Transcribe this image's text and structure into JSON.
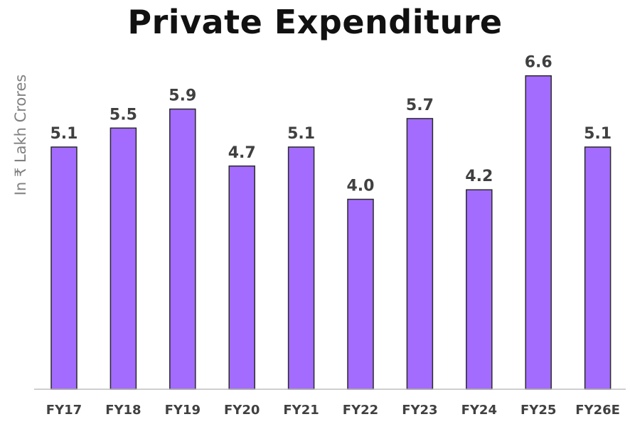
{
  "chart_data": {
    "type": "bar",
    "title": "Private Expenditure",
    "ylabel": "In ₹ Lakh Crores",
    "xlabel": "",
    "categories": [
      "FY17",
      "FY18",
      "FY19",
      "FY20",
      "FY21",
      "FY22",
      "FY23",
      "FY24",
      "FY25",
      "FY26E"
    ],
    "values": [
      5.1,
      5.5,
      5.9,
      4.7,
      5.1,
      4.0,
      5.7,
      4.2,
      6.6,
      5.1
    ],
    "value_labels": [
      "5.1",
      "5.5",
      "5.9",
      "4.7",
      "5.1",
      "4.0",
      "5.7",
      "4.2",
      "6.6",
      "5.1"
    ],
    "ylim": [
      0,
      7
    ],
    "grid": false,
    "legend": "none",
    "colors": {
      "bar": "#a36cff",
      "bar_border": "#2a2a2a",
      "value_text": "#404040",
      "tick_text": "#404040",
      "ylabel_text": "#808080",
      "axis": "#bfbfbf"
    }
  }
}
